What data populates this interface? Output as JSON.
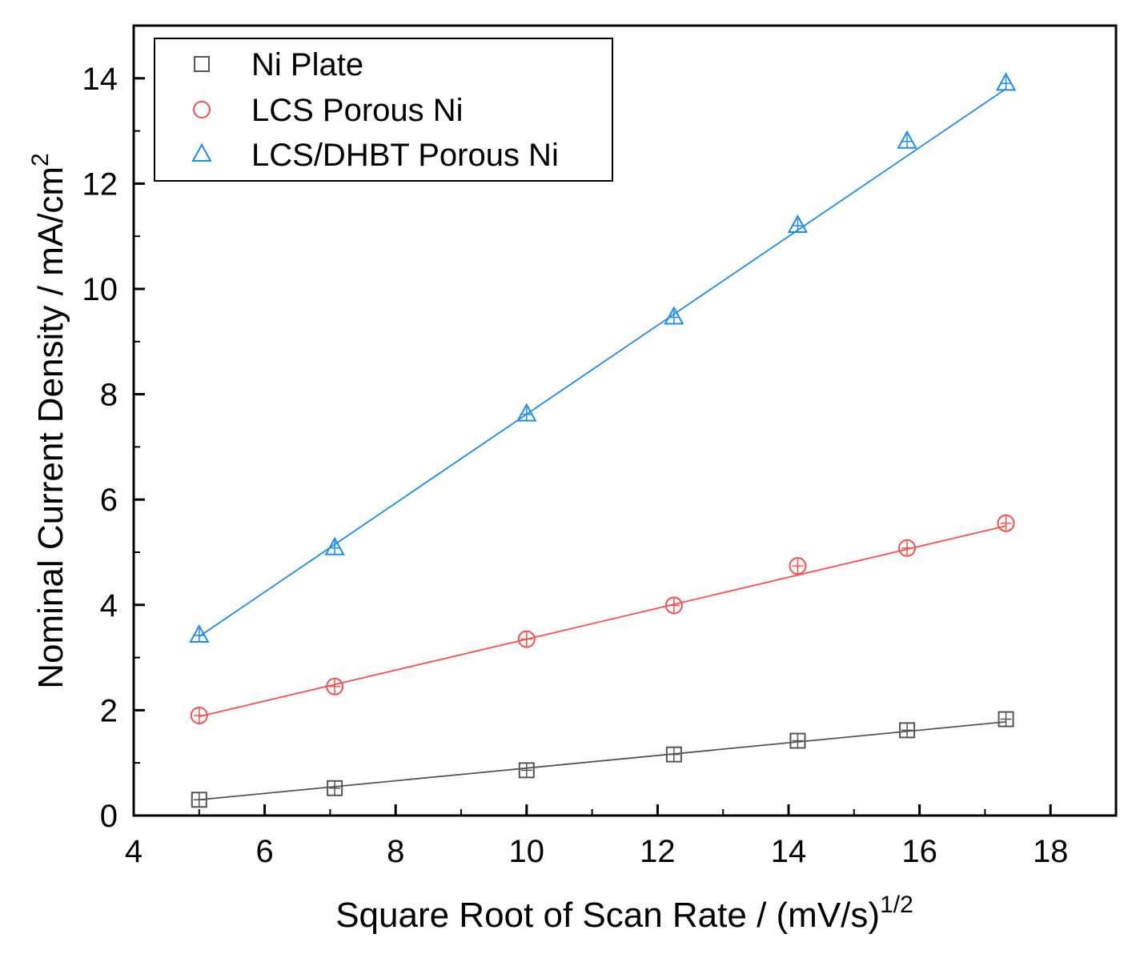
{
  "chart_data": {
    "type": "scatter",
    "xlabel": "Square Root of Scan Rate / (mV/s)",
    "xlabel_sup": "1/2",
    "ylabel": "Nominal Current Density / mA/cm",
    "ylabel_sup": "2",
    "xlim": [
      4,
      19
    ],
    "ylim": [
      0,
      15
    ],
    "xticks": [
      4,
      6,
      8,
      10,
      12,
      14,
      16,
      18
    ],
    "yticks": [
      0,
      2,
      4,
      6,
      8,
      10,
      12,
      14
    ],
    "x": [
      5.0,
      7.07,
      10.0,
      12.25,
      14.14,
      15.81,
      17.32
    ],
    "legend_position": "top-left",
    "series": [
      {
        "name": "Ni Plate",
        "marker": "square",
        "color": "#555555",
        "values": [
          0.3,
          0.52,
          0.86,
          1.16,
          1.42,
          1.62,
          1.83
        ],
        "fit": [
          0.3,
          1.78
        ]
      },
      {
        "name": "LCS Porous Ni",
        "marker": "circle",
        "color": "#ff4d4d",
        "values": [
          1.9,
          2.45,
          3.35,
          3.99,
          4.74,
          5.08,
          5.55
        ],
        "fit": [
          1.88,
          5.5
        ]
      },
      {
        "name": "LCS/DHBT Porous Ni",
        "marker": "triangle",
        "color": "#1e8cf0",
        "values": [
          3.42,
          5.08,
          7.62,
          9.46,
          11.2,
          12.8,
          13.9
        ],
        "fit": [
          3.4,
          13.8
        ]
      }
    ]
  }
}
